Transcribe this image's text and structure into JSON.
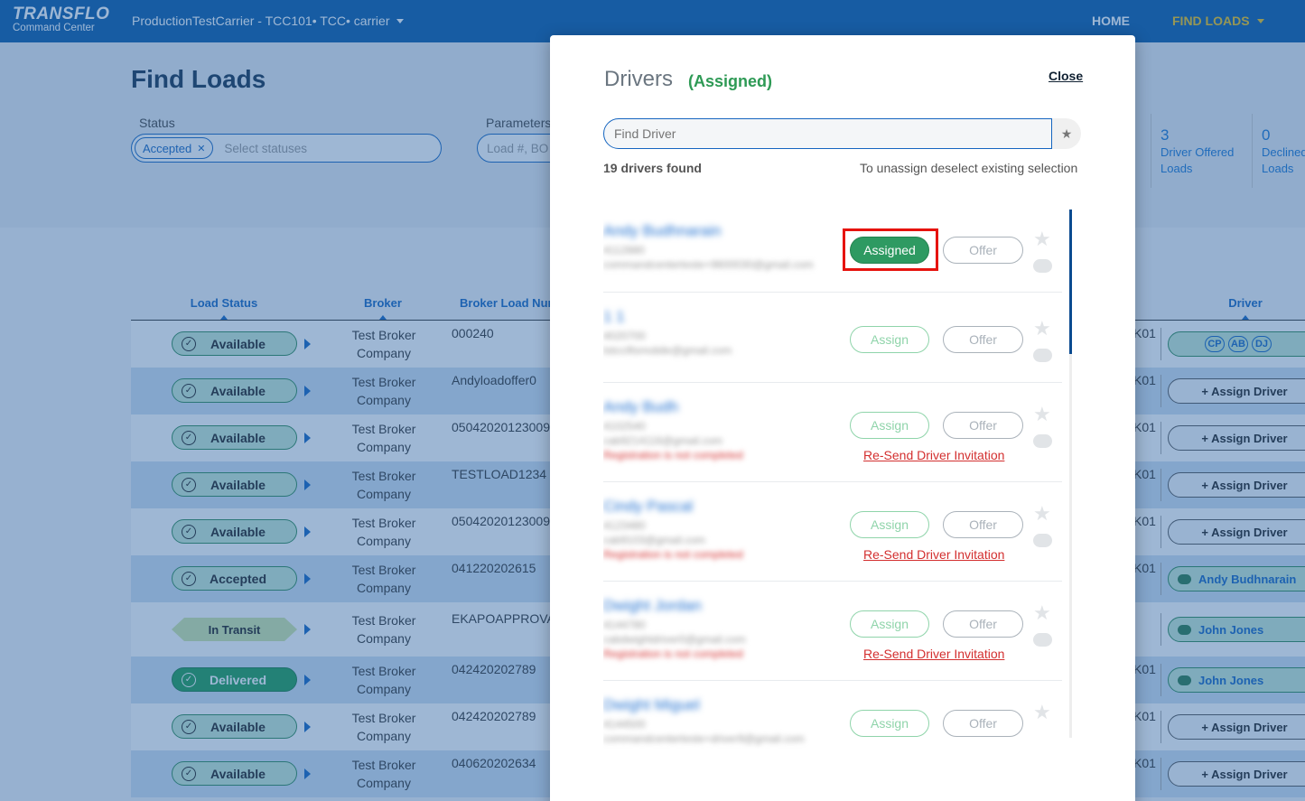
{
  "topbar": {
    "brand": "TRANSFLO",
    "brand_sub": "Command Center",
    "carrier": "ProductionTestCarrier - TCC101• TCC• carrier",
    "nav_home": "HOME",
    "nav_find": "FIND LOADS"
  },
  "page": {
    "title": "Find Loads",
    "status_label": "Status",
    "status_chip": "Accepted",
    "status_placeholder": "Select statuses",
    "params_label": "Parameters",
    "params_placeholder": "Load #, BO"
  },
  "stats": [
    {
      "num": "3",
      "line1": "Driver Offered",
      "line2": "Loads"
    },
    {
      "num": "0",
      "line1": "Declined",
      "line2": "Loads"
    }
  ],
  "table": {
    "headers": {
      "load_status": "Load Status",
      "broker": "Broker",
      "broker_load": "Broker Load Num",
      "driver": "Driver"
    },
    "rows": [
      {
        "status": "Available",
        "broker1": "Test Broker",
        "broker2": "Company",
        "bln": "000240",
        "ko": "K01",
        "driver_type": "initials",
        "initials": [
          "CP",
          "AB",
          "DJ"
        ]
      },
      {
        "status": "Available",
        "broker1": "Test Broker",
        "broker2": "Company",
        "bln": "Andyloadoffer0",
        "ko": "K01",
        "driver_type": "assign",
        "driver": "+ Assign Driver"
      },
      {
        "status": "Available",
        "broker1": "Test Broker",
        "broker2": "Company",
        "bln": "05042020123009",
        "ko": "K01",
        "driver_type": "assign",
        "driver": "+ Assign Driver"
      },
      {
        "status": "Available",
        "broker1": "Test Broker",
        "broker2": "Company",
        "bln": "TESTLOAD1234",
        "ko": "K01",
        "driver_type": "assign",
        "driver": "+ Assign Driver"
      },
      {
        "status": "Available",
        "broker1": "Test Broker",
        "broker2": "Company",
        "bln": "05042020123009",
        "ko": "K01",
        "driver_type": "assign",
        "driver": "+ Assign Driver"
      },
      {
        "status": "Accepted",
        "broker1": "Test Broker",
        "broker2": "Company",
        "bln": "041220202615",
        "ko": "K01",
        "driver_type": "named",
        "driver": "Andy Budhnarain"
      },
      {
        "status": "In Transit",
        "broker1": "Test Broker",
        "broker2": "Company",
        "bln": "EKAPOAPPROVAL",
        "ko": "",
        "driver_type": "named",
        "driver": "John Jones"
      },
      {
        "status": "Delivered",
        "broker1": "Test Broker",
        "broker2": "Company",
        "bln": "042420202789",
        "ko": "K01",
        "driver_type": "named",
        "driver": "John Jones"
      },
      {
        "status": "Available",
        "broker1": "Test Broker",
        "broker2": "Company",
        "bln": "042420202789",
        "ko": "K01",
        "driver_type": "assign",
        "driver": "+ Assign Driver"
      },
      {
        "status": "Available",
        "broker1": "Test Broker",
        "broker2": "Company",
        "bln": "040620202634",
        "ko": "K01",
        "driver_type": "assign",
        "driver": "+ Assign Driver"
      }
    ]
  },
  "modal": {
    "title": "Drivers",
    "subtitle": "(Assigned)",
    "close": "Close",
    "search_placeholder": "Find Driver",
    "count": "19 drivers found",
    "note": "To unassign deselect existing selection",
    "assign_label": "Assign",
    "assigned_label": "Assigned",
    "offer_label": "Offer",
    "resend_label": "Re-Send Driver Invitation",
    "drivers": [
      {
        "name": "Andy Budhnarain",
        "phone": "4112880",
        "email": "commandcenterteste+9600030@gmail.com",
        "warn": "",
        "state": "assigned"
      },
      {
        "name": "1 1",
        "phone": "4020700",
        "email": "tstcciftsmobile@gmail.com",
        "warn": "",
        "state": "assign"
      },
      {
        "name": "Andy Budh",
        "phone": "4102540",
        "email": "cab9214116@gmail.com",
        "warn": "Registration is not completed",
        "state": "assign"
      },
      {
        "name": "Cindy Pascal",
        "phone": "4123480",
        "email": "cab9103@gmail.com",
        "warn": "Registration is not completed",
        "state": "assign"
      },
      {
        "name": "Dwight Jordan",
        "phone": "4144780",
        "email": "cabdwightdriver0@gmail.com",
        "warn": "Registration is not completed",
        "state": "assign"
      },
      {
        "name": "Dwight Miguel",
        "phone": "4144500",
        "email": "commandcenterteste+driver9@gmail.com",
        "warn": "",
        "state": "assign"
      }
    ]
  }
}
